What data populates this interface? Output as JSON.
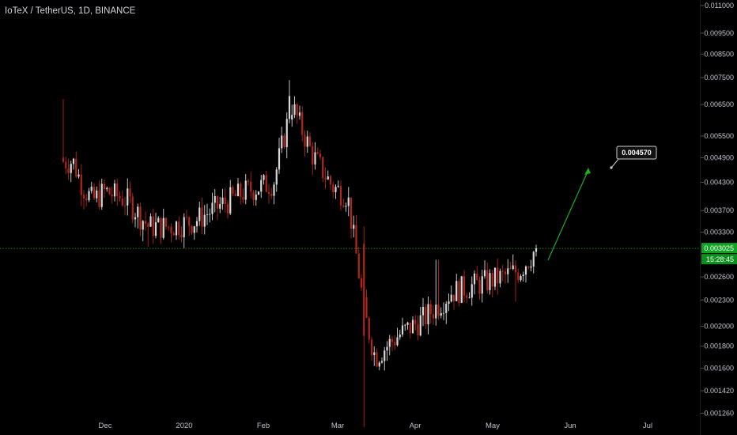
{
  "header": {
    "title": "IoTeX / TetherUS, 1D, BINANCE"
  },
  "colors": {
    "up": "#d8d8d8",
    "down": "#b3261e",
    "green": "#1fae1f",
    "axis_text": "#bfc3cc",
    "price_tag": "#12a324"
  },
  "price_marker": {
    "value": "0.003025",
    "countdown": "15:28:45"
  },
  "annotation": {
    "label": "0.004570"
  },
  "chart_data": {
    "type": "candlestick",
    "title": "IoTeX / TetherUS, 1D, BINANCE",
    "y_scale": "log",
    "ylim": [
      0.00116,
      0.0114
    ],
    "y_ticks": [
      "0.011000",
      "0.009500",
      "0.008500",
      "0.007500",
      "0.006500",
      "0.005500",
      "0.004900",
      "0.004300",
      "0.003700",
      "0.003300",
      "0.002600",
      "0.002300",
      "0.002000",
      "0.001800",
      "0.001600",
      "0.001420",
      "0.001260"
    ],
    "x_ticks": [
      "Dec",
      "2020",
      "Feb",
      "Mar",
      "Apr",
      "May",
      "Jun",
      "Jul"
    ],
    "last_price": 0.003025,
    "target_price": 0.00457,
    "price_path_approx": [
      {
        "date": "Nov 8",
        "close": 0.0048
      },
      {
        "date": "Nov 15",
        "close": 0.0042
      },
      {
        "date": "Nov 22",
        "close": 0.0039
      },
      {
        "date": "Dec 1",
        "close": 0.0041
      },
      {
        "date": "Dec 10",
        "close": 0.0039
      },
      {
        "date": "Dec 18",
        "close": 0.0034
      },
      {
        "date": "Dec 26",
        "close": 0.0034
      },
      {
        "date": "Jan 5",
        "close": 0.0035
      },
      {
        "date": "Jan 15",
        "close": 0.0038
      },
      {
        "date": "Jan 25",
        "close": 0.0041
      },
      {
        "date": "Feb 5",
        "close": 0.0043
      },
      {
        "date": "Feb 12",
        "close": 0.0065
      },
      {
        "date": "Feb 20",
        "close": 0.005
      },
      {
        "date": "Feb 28",
        "close": 0.0042
      },
      {
        "date": "Mar 5",
        "close": 0.004
      },
      {
        "date": "Mar 12",
        "close": 0.0021
      },
      {
        "date": "Mar 16",
        "close": 0.0017
      },
      {
        "date": "Mar 25",
        "close": 0.0019
      },
      {
        "date": "Apr 5",
        "close": 0.0021
      },
      {
        "date": "Apr 15",
        "close": 0.0024
      },
      {
        "date": "Apr 25",
        "close": 0.0025
      },
      {
        "date": "May 5",
        "close": 0.0026
      },
      {
        "date": "May 12",
        "close": 0.0027
      },
      {
        "date": "May 18",
        "close": 0.003
      }
    ]
  }
}
